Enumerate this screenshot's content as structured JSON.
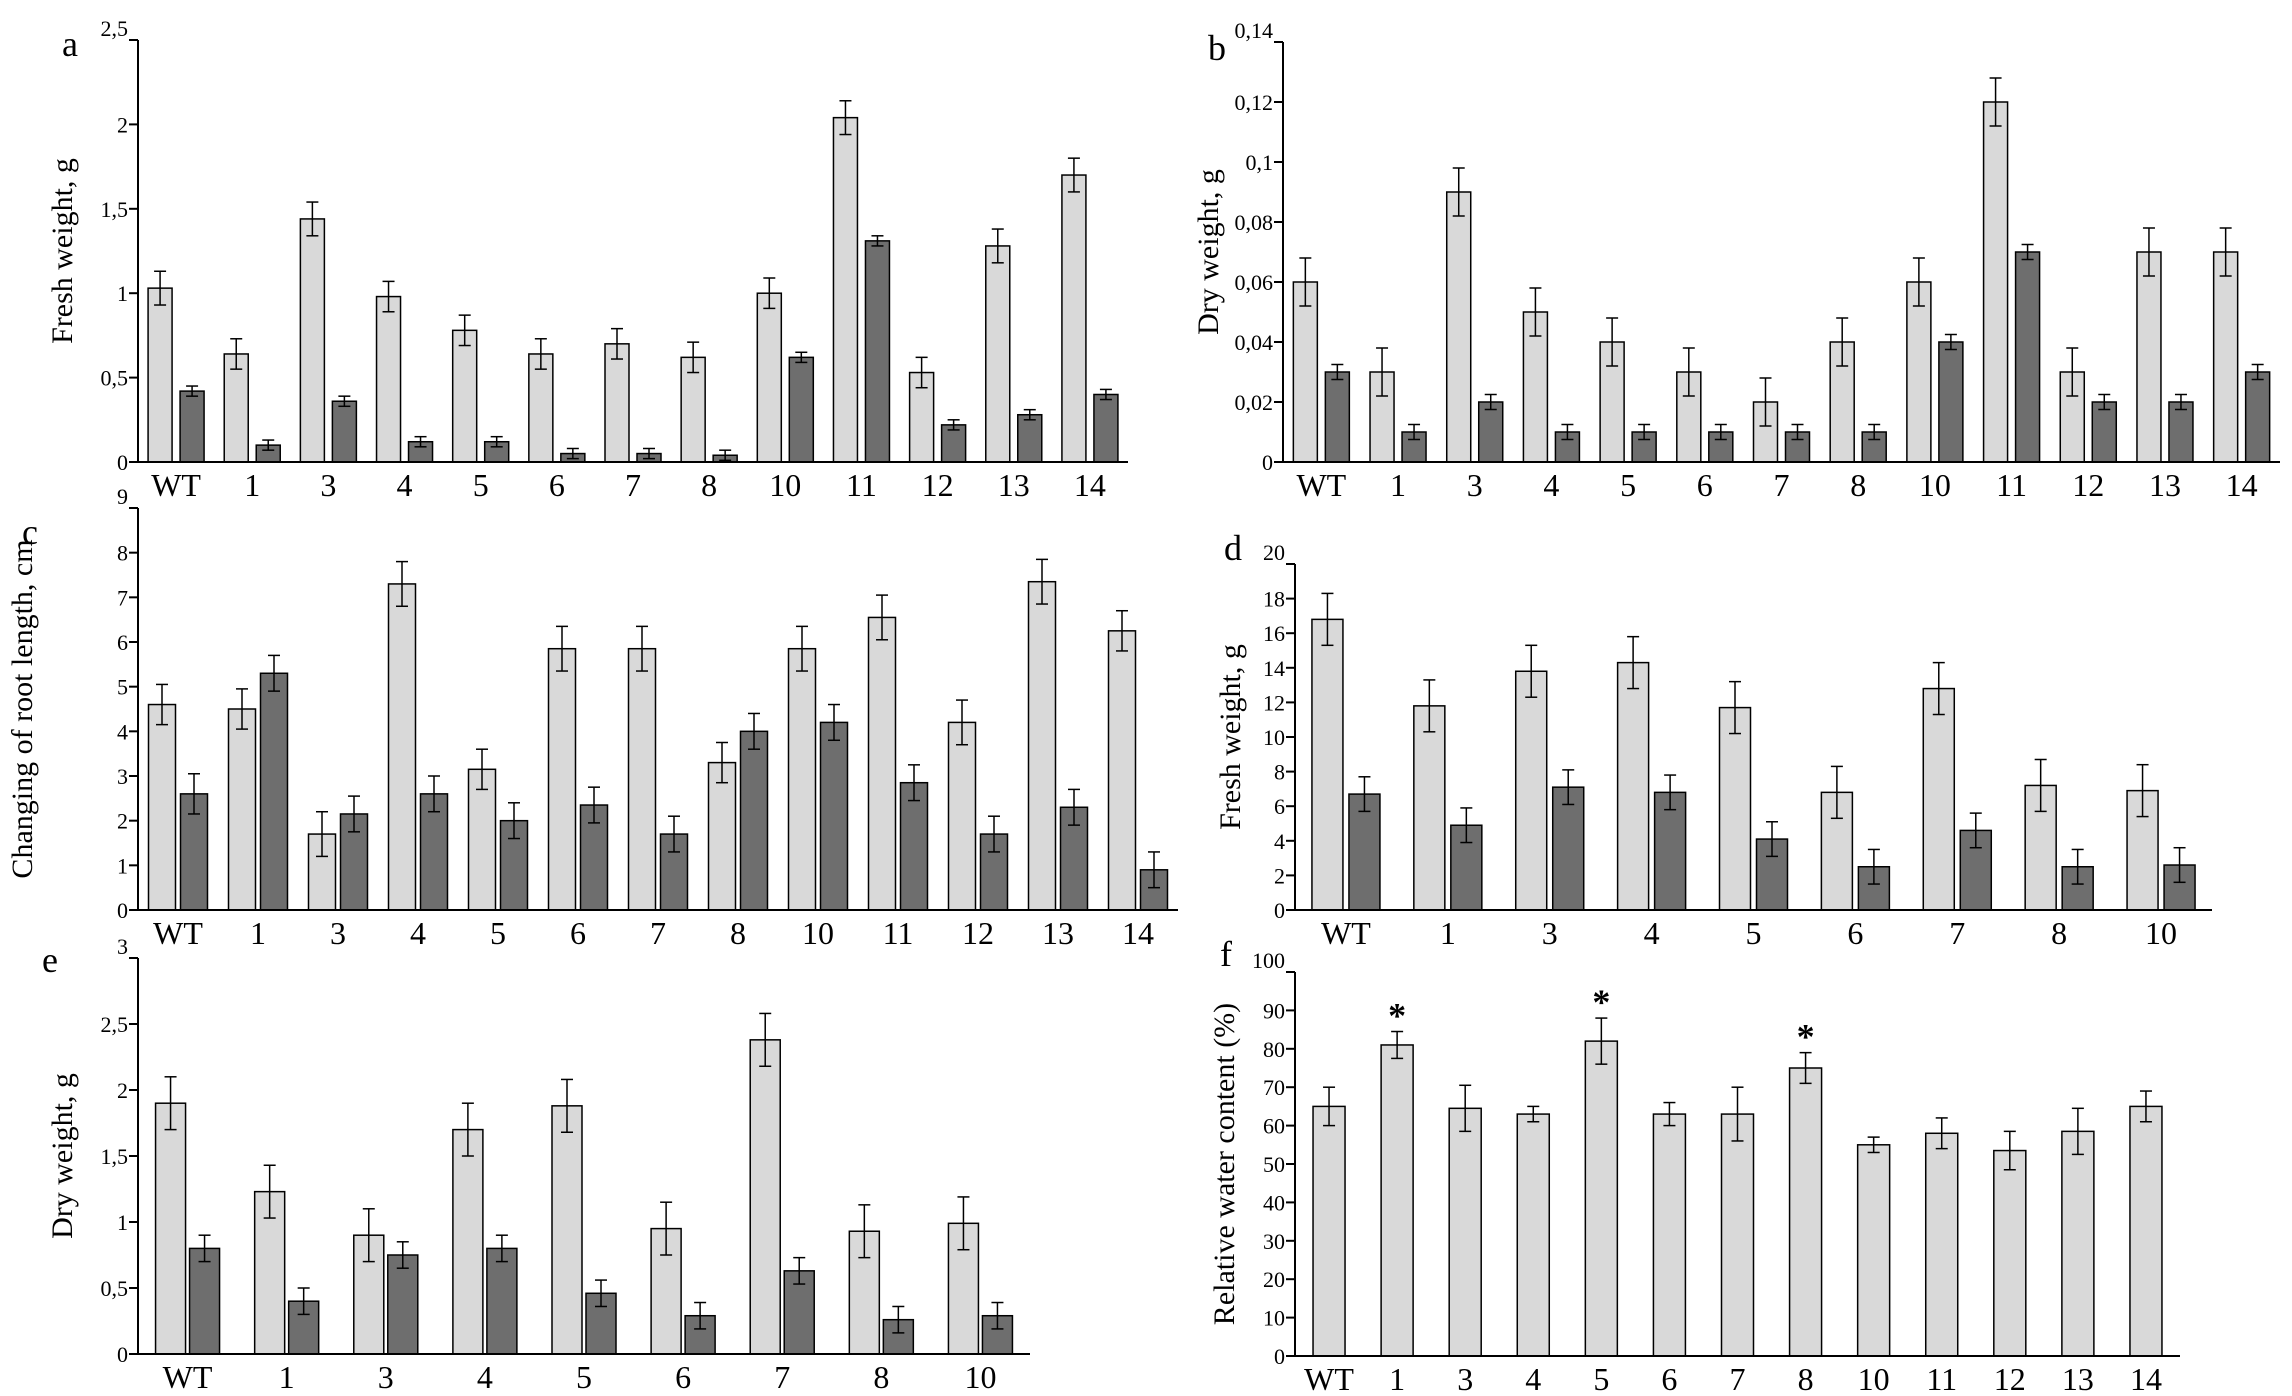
{
  "colors": {
    "series_light": "#d9d9d9",
    "series_dark": "#6e6e6e",
    "stroke": "#000000",
    "background": "#ffffff"
  },
  "chart_data": [
    {
      "panel": "a",
      "type": "bar",
      "ylabel": "Fresh weight, g",
      "ylim": [
        0,
        2.5
      ],
      "yticks": [
        "0",
        "0,5",
        "1",
        "1,5",
        "2",
        "2,5"
      ],
      "categories": [
        "WT",
        "1",
        "3",
        "4",
        "5",
        "6",
        "7",
        "8",
        "10",
        "11",
        "12",
        "13",
        "14"
      ],
      "series": [
        {
          "values": [
            1.03,
            0.64,
            1.44,
            0.98,
            0.78,
            0.64,
            0.7,
            0.62,
            1.0,
            2.04,
            0.53,
            1.28,
            1.7
          ],
          "errors": [
            0.1,
            0.09,
            0.1,
            0.09,
            0.09,
            0.09,
            0.09,
            0.09,
            0.09,
            0.1,
            0.09,
            0.1,
            0.1
          ]
        },
        {
          "values": [
            0.42,
            0.1,
            0.36,
            0.12,
            0.12,
            0.05,
            0.05,
            0.04,
            0.62,
            1.31,
            0.22,
            0.28,
            0.4
          ],
          "errors": [
            0.03,
            0.03,
            0.03,
            0.03,
            0.03,
            0.03,
            0.03,
            0.03,
            0.03,
            0.03,
            0.03,
            0.03,
            0.03
          ]
        }
      ]
    },
    {
      "panel": "b",
      "type": "bar",
      "ylabel": "Dry weight, g",
      "ylim": [
        0,
        0.14
      ],
      "yticks": [
        "0",
        "0,02",
        "0,04",
        "0,06",
        "0,08",
        "0,1",
        "0,12",
        "0,14"
      ],
      "categories": [
        "WT",
        "1",
        "3",
        "4",
        "5",
        "6",
        "7",
        "8",
        "10",
        "11",
        "12",
        "13",
        "14"
      ],
      "series": [
        {
          "values": [
            0.06,
            0.03,
            0.09,
            0.05,
            0.04,
            0.03,
            0.02,
            0.04,
            0.06,
            0.12,
            0.03,
            0.07,
            0.07
          ],
          "errors": [
            0.008,
            0.008,
            0.008,
            0.008,
            0.008,
            0.008,
            0.008,
            0.008,
            0.008,
            0.008,
            0.008,
            0.008,
            0.008
          ]
        },
        {
          "values": [
            0.03,
            0.01,
            0.02,
            0.01,
            0.01,
            0.01,
            0.01,
            0.01,
            0.04,
            0.07,
            0.02,
            0.02,
            0.03
          ],
          "errors": [
            0.0025,
            0.0025,
            0.0025,
            0.0025,
            0.0025,
            0.0025,
            0.0025,
            0.0025,
            0.0025,
            0.0025,
            0.0025,
            0.0025,
            0.0025
          ]
        }
      ]
    },
    {
      "panel": "c",
      "type": "bar",
      "ylabel": "Changing of root length, cm",
      "ylim": [
        0,
        9
      ],
      "yticks": [
        "0",
        "1",
        "2",
        "3",
        "4",
        "5",
        "6",
        "7",
        "8",
        "9"
      ],
      "categories": [
        "WT",
        "1",
        "3",
        "4",
        "5",
        "6",
        "7",
        "8",
        "10",
        "11",
        "12",
        "13",
        "14"
      ],
      "series": [
        {
          "values": [
            4.6,
            4.5,
            1.7,
            7.3,
            3.15,
            5.85,
            5.85,
            3.3,
            5.85,
            6.55,
            4.2,
            7.35,
            6.25
          ],
          "errors": [
            0.45,
            0.45,
            0.5,
            0.5,
            0.45,
            0.5,
            0.5,
            0.45,
            0.5,
            0.5,
            0.5,
            0.5,
            0.45
          ]
        },
        {
          "values": [
            2.6,
            5.3,
            2.15,
            2.6,
            2.0,
            2.35,
            1.7,
            4.0,
            4.2,
            2.85,
            1.7,
            2.3,
            0.9
          ],
          "errors": [
            0.45,
            0.4,
            0.4,
            0.4,
            0.4,
            0.4,
            0.4,
            0.4,
            0.4,
            0.4,
            0.4,
            0.4,
            0.4
          ]
        }
      ]
    },
    {
      "panel": "d",
      "type": "bar",
      "ylabel": "Fresh weight, g",
      "ylim": [
        0,
        20
      ],
      "yticks": [
        "0",
        "2",
        "4",
        "6",
        "8",
        "10",
        "12",
        "14",
        "16",
        "18",
        "20"
      ],
      "categories": [
        "WT",
        "1",
        "3",
        "4",
        "5",
        "6",
        "7",
        "8",
        "10"
      ],
      "series": [
        {
          "values": [
            16.8,
            11.8,
            13.8,
            14.3,
            11.7,
            6.8,
            12.8,
            7.2,
            6.9
          ],
          "errors": [
            1.5,
            1.5,
            1.5,
            1.5,
            1.5,
            1.5,
            1.5,
            1.5,
            1.5
          ]
        },
        {
          "values": [
            6.7,
            4.9,
            7.1,
            6.8,
            4.1,
            2.5,
            4.6,
            2.5,
            2.6
          ],
          "errors": [
            1.0,
            1.0,
            1.0,
            1.0,
            1.0,
            1.0,
            1.0,
            1.0,
            1.0
          ]
        }
      ]
    },
    {
      "panel": "e",
      "type": "bar",
      "ylabel": "Dry weight, g",
      "ylim": [
        0,
        3
      ],
      "yticks": [
        "0",
        "0,5",
        "1",
        "1,5",
        "2",
        "2,5",
        "3"
      ],
      "categories": [
        "WT",
        "1",
        "3",
        "4",
        "5",
        "6",
        "7",
        "8",
        "10"
      ],
      "series": [
        {
          "values": [
            1.9,
            1.23,
            0.9,
            1.7,
            1.88,
            0.95,
            2.38,
            0.93,
            0.99
          ],
          "errors": [
            0.2,
            0.2,
            0.2,
            0.2,
            0.2,
            0.2,
            0.2,
            0.2,
            0.2
          ]
        },
        {
          "values": [
            0.8,
            0.4,
            0.75,
            0.8,
            0.46,
            0.29,
            0.63,
            0.26,
            0.29
          ],
          "errors": [
            0.1,
            0.1,
            0.1,
            0.1,
            0.1,
            0.1,
            0.1,
            0.1,
            0.1
          ]
        }
      ]
    },
    {
      "panel": "f",
      "type": "bar",
      "ylabel": "Relative water content (%)",
      "ylim": [
        0,
        100
      ],
      "yticks": [
        "0",
        "10",
        "20",
        "30",
        "40",
        "50",
        "60",
        "70",
        "80",
        "90",
        "100"
      ],
      "categories": [
        "WT",
        "1",
        "3",
        "4",
        "5",
        "6",
        "7",
        "8",
        "10",
        "11",
        "12",
        "13",
        "14"
      ],
      "series": [
        {
          "values": [
            65,
            81,
            64.5,
            63,
            82,
            63,
            63,
            75,
            55,
            58,
            53.5,
            58.5,
            65
          ],
          "errors": [
            5,
            3.5,
            6,
            2,
            6,
            3,
            7,
            4,
            2,
            4,
            5,
            6,
            4
          ]
        }
      ],
      "significance": [
        "",
        "*",
        "",
        "",
        "*",
        "",
        "",
        "*",
        "",
        "",
        "",
        "",
        ""
      ]
    }
  ]
}
